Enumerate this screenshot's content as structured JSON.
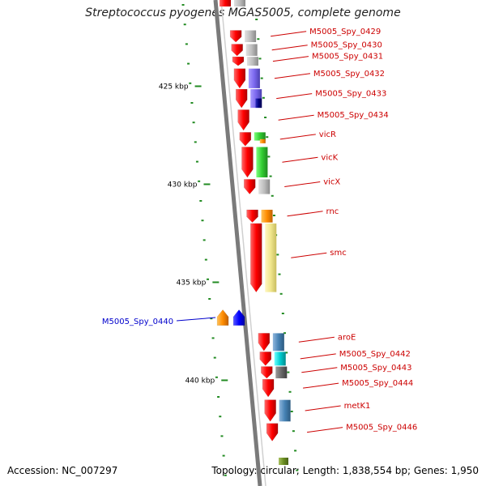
{
  "title": "Streptococcus pyogenes MGAS5005, complete genome",
  "footer": {
    "accession": "Accession: NC_007297",
    "summary": "Topology: circular; Length: 1,838,554 bp; Genes: 1,950"
  },
  "colors": {
    "cds": "#ff0000",
    "label": "#cc0000",
    "reverse_label": "#0000cc",
    "tick": "#228b22"
  },
  "scale_ticks": [
    {
      "label": "425 kbp",
      "kbp": 425
    },
    {
      "label": "430 kbp",
      "kbp": 430
    },
    {
      "label": "435 kbp",
      "kbp": 435
    },
    {
      "label": "440 kbp",
      "kbp": 440
    }
  ],
  "genes": [
    {
      "name": "M5005_Spy_0429",
      "strand": "+",
      "start_kbp": 422.15,
      "end_kbp": 422.75
    },
    {
      "name": "M5005_Spy_0430",
      "strand": "+",
      "start_kbp": 422.85,
      "end_kbp": 423.45
    },
    {
      "name": "M5005_Spy_0431",
      "strand": "+",
      "start_kbp": 423.5,
      "end_kbp": 423.95
    },
    {
      "name": "M5005_Spy_0432",
      "strand": "+",
      "start_kbp": 424.1,
      "end_kbp": 425.1
    },
    {
      "name": "M5005_Spy_0433",
      "strand": "+",
      "start_kbp": 425.15,
      "end_kbp": 426.1
    },
    {
      "name": "M5005_Spy_0434",
      "strand": "+",
      "start_kbp": 426.2,
      "end_kbp": 427.25
    },
    {
      "name": "vicR",
      "strand": "+",
      "start_kbp": 427.35,
      "end_kbp": 428.05
    },
    {
      "name": "vicK",
      "strand": "+",
      "start_kbp": 428.1,
      "end_kbp": 429.65
    },
    {
      "name": "vicX",
      "strand": "+",
      "start_kbp": 429.75,
      "end_kbp": 430.5
    },
    {
      "name": "rnc",
      "strand": "+",
      "start_kbp": 431.3,
      "end_kbp": 431.95
    },
    {
      "name": "smc",
      "strand": "+",
      "start_kbp": 432.0,
      "end_kbp": 435.5
    },
    {
      "name": "M5005_Spy_0440",
      "strand": "-",
      "start_kbp": 436.4,
      "end_kbp": 437.2
    },
    {
      "name": "aroE",
      "strand": "+",
      "start_kbp": 437.6,
      "end_kbp": 438.5
    },
    {
      "name": "M5005_Spy_0442",
      "strand": "+",
      "start_kbp": 438.55,
      "end_kbp": 439.25
    },
    {
      "name": "M5005_Spy_0443",
      "strand": "+",
      "start_kbp": 439.3,
      "end_kbp": 439.9
    },
    {
      "name": "M5005_Spy_0444",
      "strand": "+",
      "start_kbp": 439.95,
      "end_kbp": 440.85
    },
    {
      "name": "metK1",
      "strand": "+",
      "start_kbp": 441.0,
      "end_kbp": 442.1
    },
    {
      "name": "M5005_Spy_0446",
      "strand": "+",
      "start_kbp": 442.2,
      "end_kbp": 443.1
    }
  ]
}
